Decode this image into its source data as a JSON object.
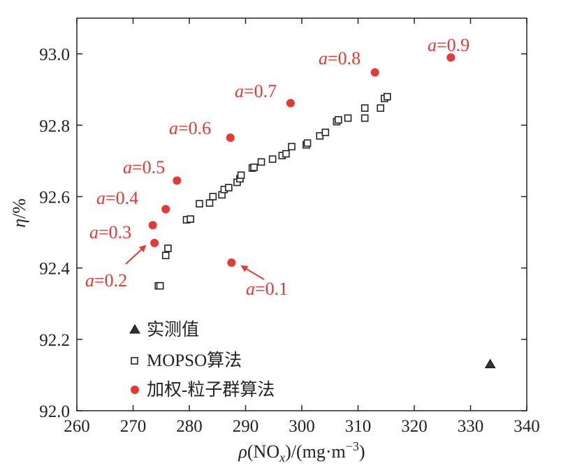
{
  "chart_data": {
    "type": "scatter",
    "xlabel": {
      "rho": "ρ",
      "open": "(NO",
      "sub": "x",
      "unit_open": ")/(mg·m",
      "sup": "−3",
      "close": ")"
    },
    "ylabel": {
      "eta": "η",
      "unit": "/%"
    },
    "xlim": [
      260,
      340
    ],
    "ylim": [
      92.0,
      93.1
    ],
    "xticks": [
      "260",
      "270",
      "280",
      "290",
      "300",
      "310",
      "320",
      "330",
      "340"
    ],
    "yticks": [
      "92.0",
      "92.2",
      "92.4",
      "92.6",
      "92.8",
      "93.0"
    ],
    "grid": false,
    "legend_placement": "bottom-left",
    "series": [
      {
        "name": "实测值",
        "marker": "triangle",
        "color": "#222222",
        "points": [
          [
            333.5,
            92.13
          ]
        ]
      },
      {
        "name": "MOPSO算法",
        "marker": "square-open",
        "color": "#222222",
        "points": [
          [
            274.5,
            92.35
          ],
          [
            274.8,
            92.35
          ],
          [
            275.8,
            92.435
          ],
          [
            276.2,
            92.455
          ],
          [
            279.5,
            92.535
          ],
          [
            280.2,
            92.537
          ],
          [
            281.8,
            92.58
          ],
          [
            283.6,
            92.582
          ],
          [
            284.2,
            92.6
          ],
          [
            285.8,
            92.605
          ],
          [
            286.2,
            92.62
          ],
          [
            287.0,
            92.625
          ],
          [
            288.5,
            92.64
          ],
          [
            289.0,
            92.65
          ],
          [
            289.2,
            92.66
          ],
          [
            291.2,
            92.68
          ],
          [
            291.5,
            92.682
          ],
          [
            292.8,
            92.697
          ],
          [
            294.8,
            92.705
          ],
          [
            296.5,
            92.715
          ],
          [
            297.2,
            92.72
          ],
          [
            298.2,
            92.74
          ],
          [
            300.8,
            92.745
          ],
          [
            301.0,
            92.75
          ],
          [
            303.2,
            92.77
          ],
          [
            304.2,
            92.78
          ],
          [
            306.2,
            92.81
          ],
          [
            306.5,
            92.815
          ],
          [
            308.2,
            92.82
          ],
          [
            311.2,
            92.82
          ],
          [
            311.2,
            92.848
          ],
          [
            314.0,
            92.848
          ],
          [
            314.7,
            92.875
          ],
          [
            315.2,
            92.88
          ]
        ]
      },
      {
        "name": "加权-粒子群算法",
        "marker": "circle",
        "color": "#e53935",
        "points": [
          [
            287.5,
            92.415
          ],
          [
            273.8,
            92.47
          ],
          [
            273.5,
            92.52
          ],
          [
            275.8,
            92.565
          ],
          [
            277.8,
            92.645
          ],
          [
            287.3,
            92.765
          ],
          [
            298.0,
            92.862
          ],
          [
            313.0,
            92.948
          ],
          [
            326.5,
            92.99
          ]
        ]
      }
    ],
    "annotations": [
      {
        "var": "a",
        "text": "=0.1",
        "x": 287.5,
        "y": 92.415
      },
      {
        "var": "a",
        "text": "=0.2",
        "x": 273.8,
        "y": 92.47
      },
      {
        "var": "a",
        "text": "=0.3",
        "x": 273.5,
        "y": 92.52
      },
      {
        "var": "a",
        "text": "=0.4",
        "x": 275.8,
        "y": 92.565
      },
      {
        "var": "a",
        "text": "=0.5",
        "x": 277.8,
        "y": 92.645
      },
      {
        "var": "a",
        "text": "=0.6",
        "x": 287.3,
        "y": 92.765
      },
      {
        "var": "a",
        "text": "=0.7",
        "x": 298.0,
        "y": 92.862
      },
      {
        "var": "a",
        "text": "=0.8",
        "x": 313.0,
        "y": 92.948
      },
      {
        "var": "a",
        "text": "=0.9",
        "x": 326.5,
        "y": 92.99
      }
    ],
    "colors": {
      "axis": "#222222",
      "accent": "#e53935"
    }
  }
}
